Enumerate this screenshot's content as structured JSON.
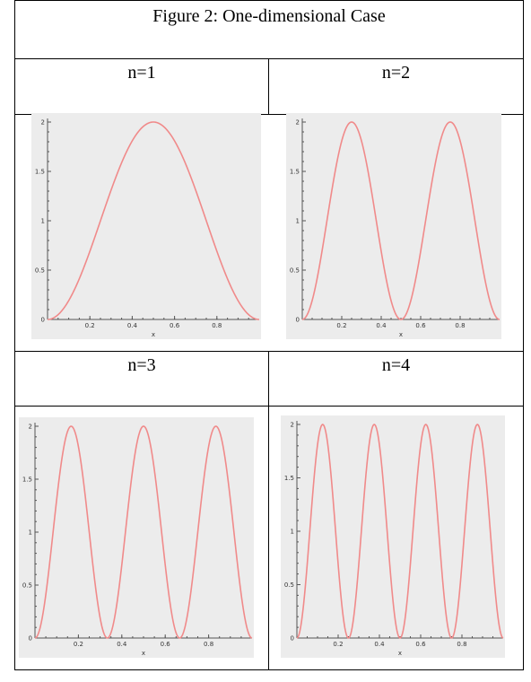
{
  "figure": {
    "title": "Figure 2: One-dimensional Case"
  },
  "colors": {
    "curve": "#f08a8a",
    "plot_bg": "#ececec",
    "axis": "#555555"
  },
  "chart_data": [
    {
      "type": "line",
      "label": "n=1",
      "n": 1,
      "function": "1 - cos(2*pi*n*x)",
      "xlim": [
        0,
        1
      ],
      "ylim": [
        0,
        2
      ],
      "xticks": [
        "0.2",
        "0.4",
        "0.6",
        "0.8"
      ],
      "yticks": [
        "0",
        "0.5",
        "1",
        "1.5",
        "2"
      ],
      "xlabel": "x",
      "grid": false
    },
    {
      "type": "line",
      "label": "n=2",
      "n": 2,
      "function": "1 - cos(2*pi*n*x)",
      "xlim": [
        0,
        1
      ],
      "ylim": [
        0,
        2
      ],
      "xticks": [
        "0.2",
        "0.4",
        "0.6",
        "0.8"
      ],
      "yticks": [
        "0",
        "0.5",
        "1",
        "1.5",
        "2"
      ],
      "xlabel": "x",
      "grid": false
    },
    {
      "type": "line",
      "label": "n=3",
      "n": 3,
      "function": "1 - cos(2*pi*n*x)",
      "xlim": [
        0,
        1
      ],
      "ylim": [
        0,
        2
      ],
      "xticks": [
        "0.2",
        "0.4",
        "0.6",
        "0.8"
      ],
      "yticks": [
        "0",
        "0.5",
        "1",
        "1.5",
        "2"
      ],
      "xlabel": "x",
      "grid": false
    },
    {
      "type": "line",
      "label": "n=4",
      "n": 4,
      "function": "1 - cos(2*pi*n*x)",
      "xlim": [
        0,
        1
      ],
      "ylim": [
        0,
        2
      ],
      "xticks": [
        "0.2",
        "0.4",
        "0.6",
        "0.8"
      ],
      "yticks": [
        "0",
        "0.5",
        "1",
        "1.5",
        "2"
      ],
      "xlabel": "x",
      "grid": false
    }
  ]
}
